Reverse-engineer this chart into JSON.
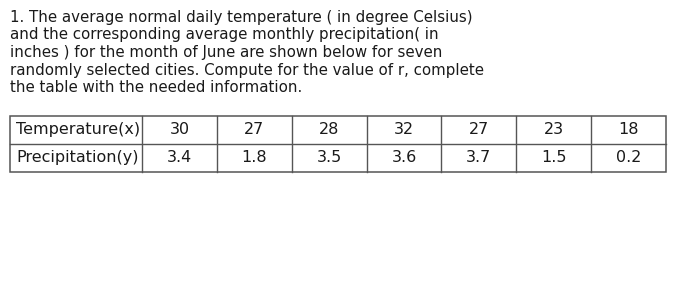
{
  "paragraph_lines": [
    "1. The average normal daily temperature ( in degree Celsius)",
    "and the corresponding average monthly precipitation( in",
    "inches ) for the month of June are shown below for seven",
    "randomly selected cities. Compute for the value of r, complete",
    "the table with the needed information."
  ],
  "row1_label": "Temperature(x)",
  "row2_label": "Precipitation(y)",
  "row1_values": [
    "30",
    "27",
    "28",
    "32",
    "27",
    "23",
    "18"
  ],
  "row2_values": [
    "3.4",
    "1.8",
    "3.5",
    "3.6",
    "3.7",
    "1.5",
    "0.2"
  ],
  "bg_color": "#ffffff",
  "text_color": "#1a1a1a",
  "table_line_color": "#555555",
  "font_size_paragraph": 10.8,
  "font_size_table": 11.5,
  "fig_width": 6.74,
  "fig_height": 3.04,
  "dpi": 100
}
